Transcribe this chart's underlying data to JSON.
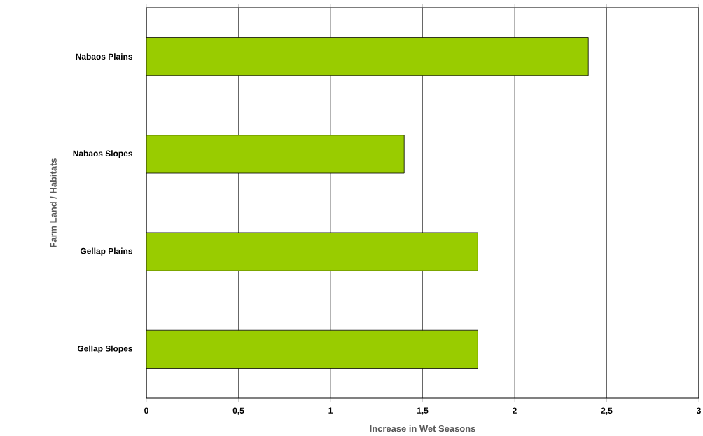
{
  "chart_data": {
    "type": "bar",
    "orientation": "horizontal",
    "categories": [
      "Nabaos Plains",
      "Nabaos Slopes",
      "Gellap Plains",
      "Gellap Slopes"
    ],
    "values": [
      2.4,
      1.4,
      1.8,
      1.8
    ],
    "color": "#99cc00",
    "xlabel": "Increase in Wet Seasons",
    "ylabel": "Farm Land / Habitats",
    "xlim": [
      0,
      3
    ],
    "xticks": [
      0,
      {
        "value": 0.5,
        "label": "0,5"
      },
      1,
      {
        "value": 1.5,
        "label": "1,5"
      },
      2,
      {
        "value": 2.5,
        "label": "2,5"
      },
      3
    ],
    "grid": "x"
  }
}
